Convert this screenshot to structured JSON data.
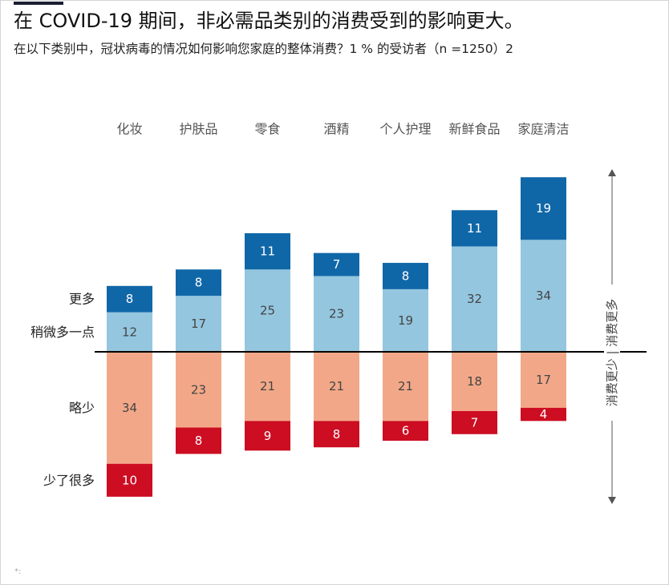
{
  "header": {
    "title": "在 COVID-19 期间，非必需品类别的消费受到的影响更大。",
    "subtitle": "在以下类别中，冠状病毒的情况如何影响您家庭的整体消费？1 % 的受访者（n =1250）2",
    "footnote": "*:"
  },
  "colors": {
    "more": "#1067a8",
    "slightly_more": "#94c6df",
    "slightly_less": "#f2a888",
    "much_less": "#cc0d22",
    "text_light": "#ffffff",
    "text_dark": "#444444"
  },
  "chart_data": {
    "type": "bar",
    "stacked": true,
    "diverging": true,
    "categories": [
      "化妆",
      "护肤品",
      "零食",
      "酒精",
      "个人护理",
      "新鲜食品",
      "家庭清洁"
    ],
    "series": [
      {
        "name": "更多",
        "direction": "up",
        "values": [
          8,
          8,
          11,
          7,
          8,
          11,
          19
        ]
      },
      {
        "name": "稍微多一点",
        "direction": "up",
        "values": [
          12,
          17,
          25,
          23,
          19,
          32,
          34
        ]
      },
      {
        "name": "略少",
        "direction": "down",
        "values": [
          34,
          23,
          21,
          21,
          21,
          18,
          17
        ]
      },
      {
        "name": "少了很多",
        "direction": "down",
        "values": [
          10,
          8,
          9,
          8,
          6,
          7,
          4
        ]
      }
    ],
    "side_axis_label": "消费更少 | 消费更多",
    "legend_placement": "left",
    "grid": false
  }
}
